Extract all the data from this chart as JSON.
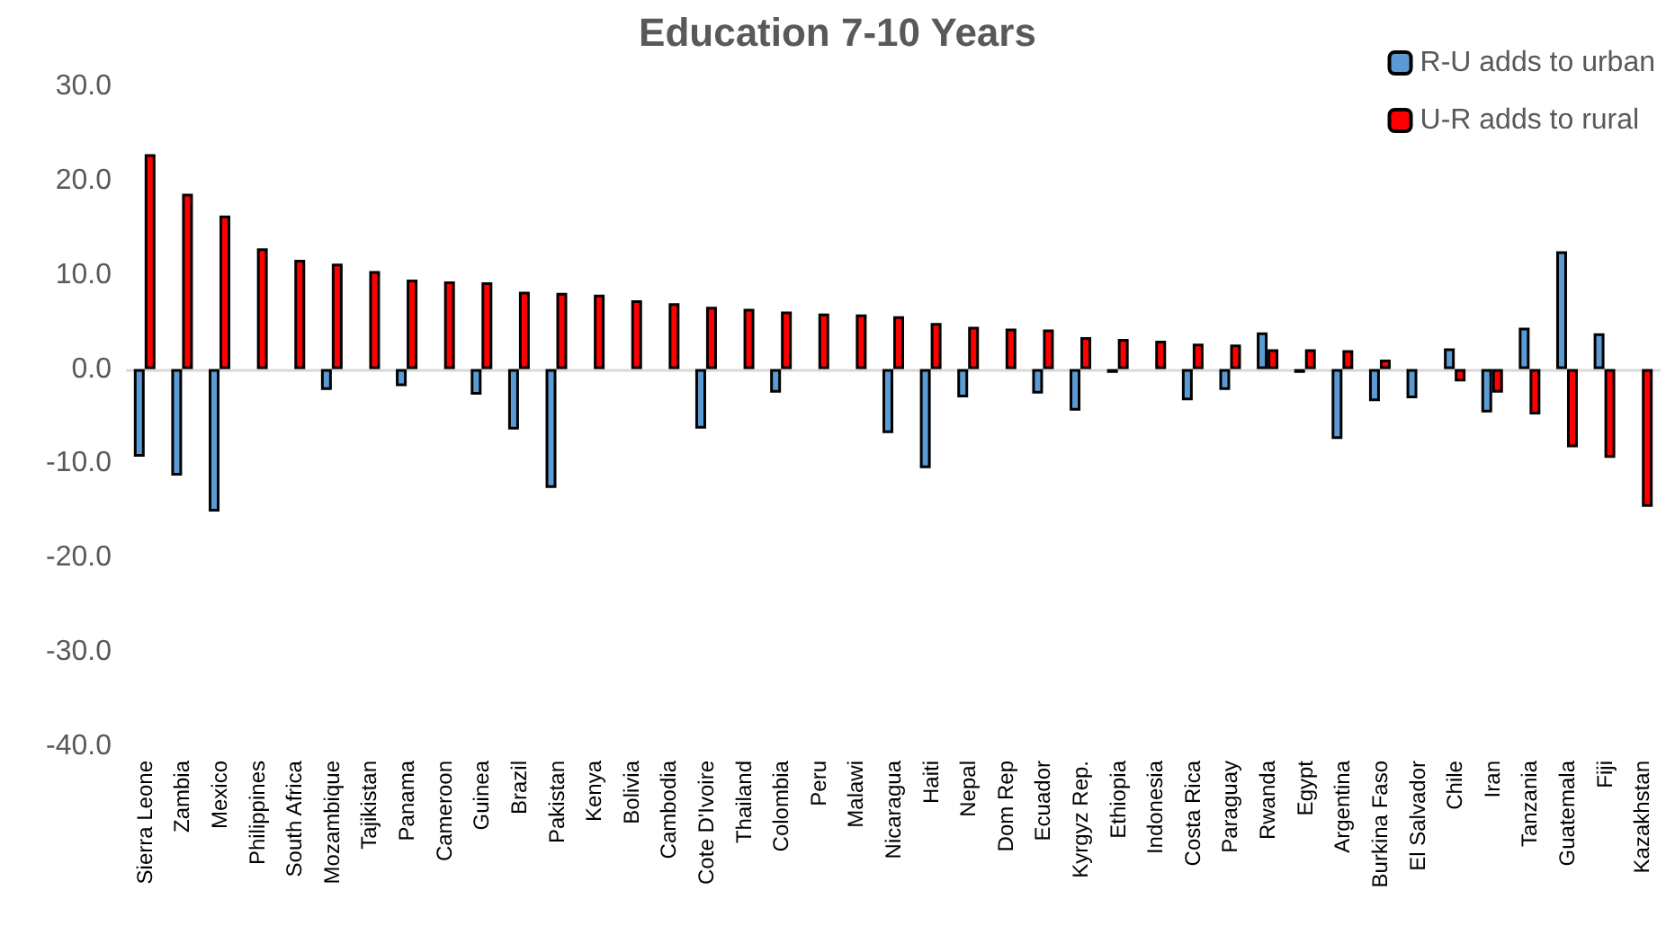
{
  "chart_data": {
    "type": "bar",
    "title": "Education 7-10 Years",
    "categories": [
      "Sierra Leone",
      "Zambia",
      "Mexico",
      "Philippines",
      "South Africa",
      "Mozambique",
      "Tajikistan",
      "Panama",
      "Cameroon",
      "Guinea",
      "Brazil",
      "Pakistan",
      "Kenya",
      "Bolivia",
      "Cambodia",
      "Cote D'Ivoire",
      "Thailand",
      "Colombia",
      "Peru",
      "Malawi",
      "Nicaragua",
      "Haiti",
      "Nepal",
      "Dom Rep",
      "Ecuador",
      "Kyrgyz Rep.",
      "Ethiopia",
      "Indonesia",
      "Costa Rica",
      "Paraguay",
      "Rwanda",
      "Egypt",
      "Argentina",
      "Burkina Faso",
      "El Salvador",
      "Chile",
      "Iran",
      "Tanzania",
      "Guatemala",
      "Fiji",
      "Kazakhstan"
    ],
    "series": [
      {
        "name": "R-U adds to urban",
        "color": "#5b9bd5",
        "values": [
          -9.3,
          -11.3,
          -15.1,
          null,
          null,
          -2.2,
          null,
          -1.8,
          null,
          -2.7,
          -6.4,
          -12.6,
          null,
          null,
          null,
          -6.3,
          null,
          -2.5,
          null,
          null,
          -6.8,
          -10.5,
          -3.0,
          null,
          -2.6,
          -4.4,
          -0.4,
          null,
          -3.3,
          -2.2,
          3.9,
          -0.4,
          -7.4,
          -3.4,
          -3.1,
          2.2,
          -4.6,
          4.4,
          12.5,
          3.8,
          null
        ]
      },
      {
        "name": "U-R adds to rural",
        "color": "#ff0000",
        "values": [
          22.8,
          18.6,
          16.3,
          12.8,
          11.6,
          11.2,
          10.4,
          9.5,
          9.3,
          9.2,
          8.2,
          8.1,
          7.9,
          7.3,
          7.0,
          6.6,
          6.4,
          6.1,
          5.9,
          5.8,
          5.6,
          4.9,
          4.5,
          4.3,
          4.2,
          3.4,
          3.2,
          3.0,
          2.7,
          2.6,
          2.1,
          2.1,
          2.0,
          1.0,
          null,
          -1.3,
          -2.5,
          -4.8,
          -8.3,
          -9.4,
          -14.6
        ]
      }
    ],
    "ylim": [
      -40,
      30
    ],
    "yticks": [
      {
        "value": -40,
        "label": "-40.0"
      },
      {
        "value": -30,
        "label": "-30.0"
      },
      {
        "value": -20,
        "label": "-20.0"
      },
      {
        "value": -10,
        "label": "-10.0"
      },
      {
        "value": 0,
        "label": "0.0"
      },
      {
        "value": 10,
        "label": "10.0"
      },
      {
        "value": 20,
        "label": "20.0"
      },
      {
        "value": 30,
        "label": "30.0"
      }
    ],
    "ref_lines": [
      {
        "axis": "y",
        "value": 0,
        "color": "#d9d9d9"
      }
    ],
    "grid": false,
    "legend": "top right"
  }
}
